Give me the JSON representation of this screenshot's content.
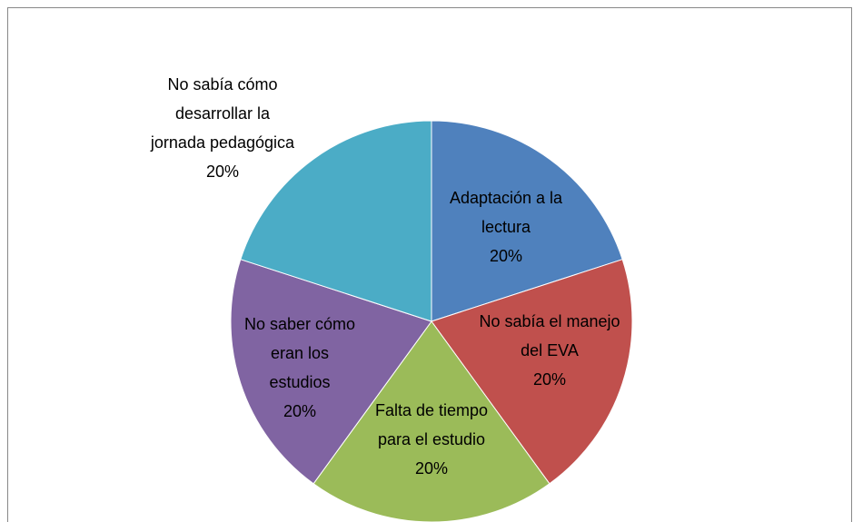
{
  "chart_data": {
    "type": "pie",
    "categories": [
      "Adaptación a la lectura",
      "No sabía el manejo del EVA",
      "Falta de tiempo para el estudio",
      "No saber cómo eran los estudios",
      "No sabía cómo desarrollar la jornada pedagógica"
    ],
    "values": [
      20,
      20,
      20,
      20,
      20
    ],
    "value_labels": [
      "20%",
      "20%",
      "20%",
      "20%",
      "20%"
    ],
    "colors": [
      "#4f81bd",
      "#c0504d",
      "#9bbb59",
      "#8064a2",
      "#4bacc6"
    ]
  }
}
